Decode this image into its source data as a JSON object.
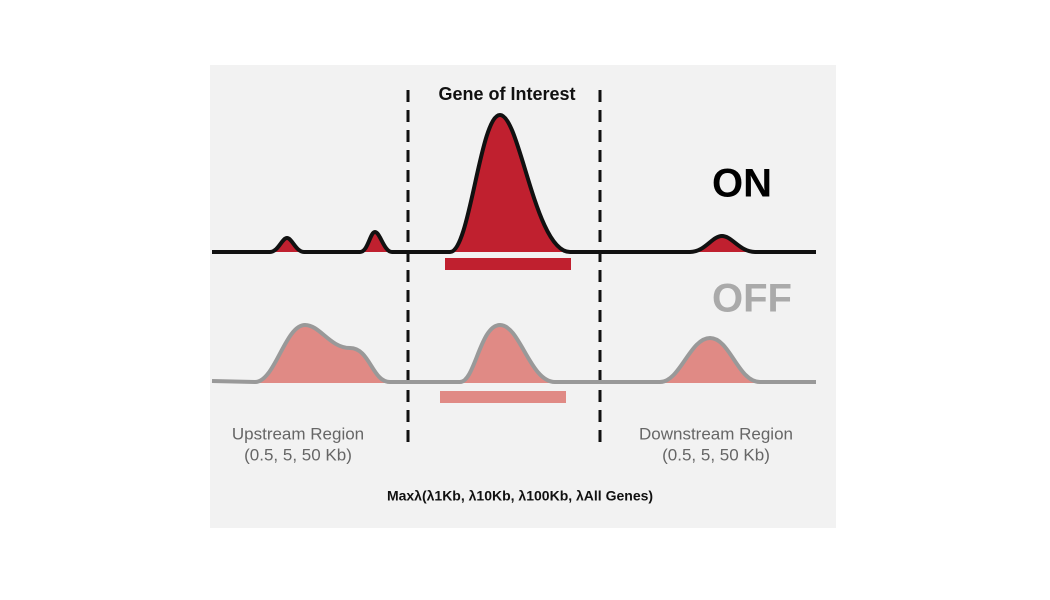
{
  "title": "Gene of Interest",
  "states": {
    "on": "ON",
    "off": "OFF"
  },
  "upstream": {
    "label": "Upstream Region",
    "range": "(0.5, 5, 50 Kb)"
  },
  "downstream": {
    "label": "Downstream Region",
    "range": "(0.5, 5, 50 Kb)"
  },
  "formula": "Maxλ(λ1Kb, λ10Kb, λ100Kb, λAll Genes)"
}
